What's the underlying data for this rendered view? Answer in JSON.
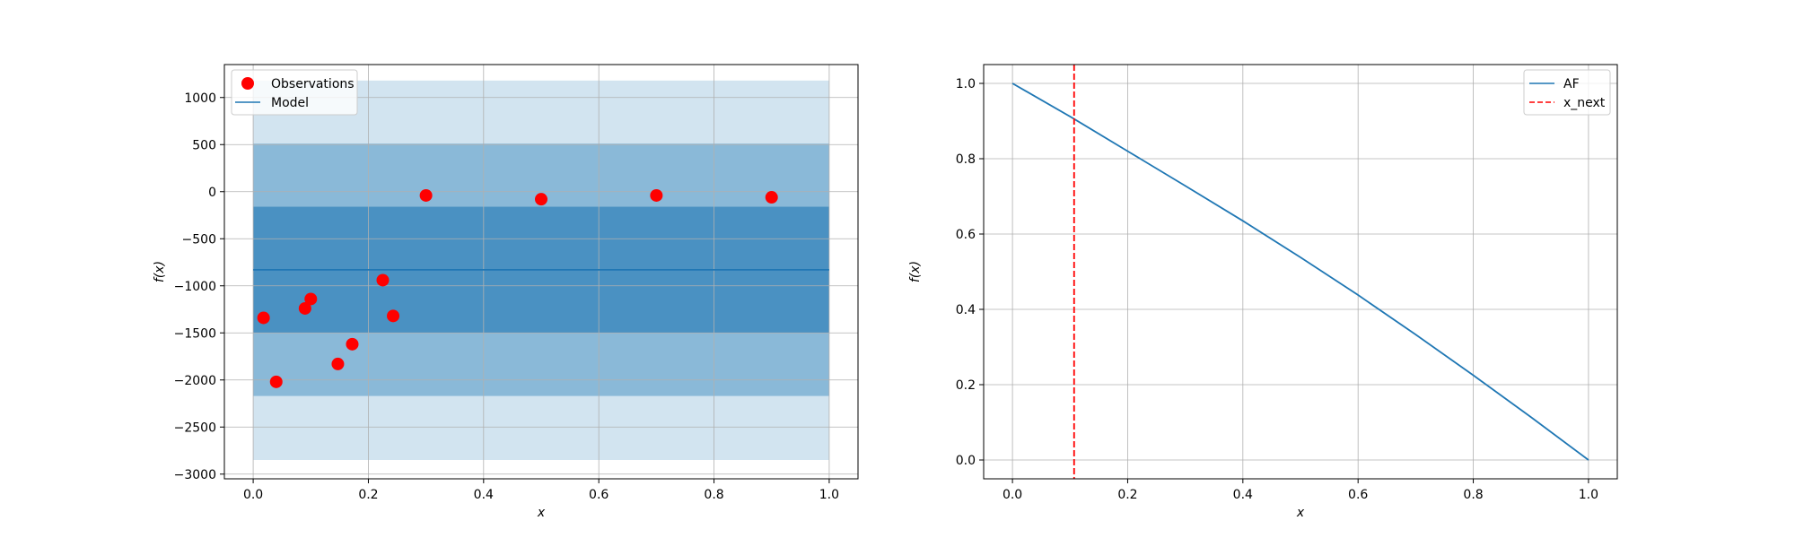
{
  "chart_data": [
    {
      "type": "scatter",
      "xlabel": "x",
      "ylabel": "f(x)",
      "xlim": [
        -0.05,
        1.05
      ],
      "ylim": [
        -3050,
        1350
      ],
      "xticks": [
        0.0,
        0.2,
        0.4,
        0.6,
        0.8,
        1.0
      ],
      "xtick_labels": [
        "0.0",
        "0.2",
        "0.4",
        "0.6",
        "0.8",
        "1.0"
      ],
      "yticks": [
        1000,
        500,
        0,
        -500,
        -1000,
        -1500,
        -2000,
        -2500,
        -3000
      ],
      "ytick_labels": [
        "1000",
        "500",
        "0",
        "−500",
        "−1000",
        "−1500",
        "−2000",
        "−2500",
        "−3000"
      ],
      "grid": true,
      "legend_position": "top-left",
      "legend": [
        "Observations",
        "Model"
      ],
      "observations": {
        "name": "Observations",
        "color": "#ff0000",
        "x": [
          0.018,
          0.04,
          0.09,
          0.1,
          0.147,
          0.172,
          0.225,
          0.243,
          0.3,
          0.5,
          0.7,
          0.9
        ],
        "y": [
          -1340,
          -2020,
          -1240,
          -1140,
          -1830,
          -1620,
          -940,
          -1320,
          -40,
          -80,
          -40,
          -60
        ]
      },
      "model": {
        "name": "Model",
        "color": "#1f77b4",
        "x": [
          0.0,
          1.0
        ],
        "y": [
          -830,
          -830
        ]
      },
      "bands": [
        {
          "lower": -2850,
          "upper": 1180,
          "color": "#1f77b4",
          "opacity": 0.2
        },
        {
          "lower": -2170,
          "upper": 510,
          "color": "#1f77b4",
          "opacity": 0.4
        },
        {
          "lower": -1500,
          "upper": -160,
          "color": "#1f77b4",
          "opacity": 0.6
        }
      ],
      "band_x": [
        0.0,
        1.0
      ]
    },
    {
      "type": "line",
      "xlabel": "x",
      "ylabel": "f(x)",
      "xlim": [
        -0.05,
        1.05
      ],
      "ylim": [
        -0.05,
        1.05
      ],
      "xticks": [
        0.0,
        0.2,
        0.4,
        0.6,
        0.8,
        1.0
      ],
      "xtick_labels": [
        "0.0",
        "0.2",
        "0.4",
        "0.6",
        "0.8",
        "1.0"
      ],
      "yticks": [
        0.0,
        0.2,
        0.4,
        0.6,
        0.8,
        1.0
      ],
      "ytick_labels": [
        "0.0",
        "0.2",
        "0.4",
        "0.6",
        "0.8",
        "1.0"
      ],
      "grid": true,
      "legend_position": "top-right",
      "legend": [
        "AF",
        "x_next"
      ],
      "series": [
        {
          "name": "AF",
          "color": "#1f77b4",
          "x": [
            0.0,
            0.1,
            0.2,
            0.3,
            0.4,
            0.5,
            0.6,
            0.7,
            0.8,
            0.9,
            1.0
          ],
          "y": [
            1.0,
            0.912,
            0.82,
            0.728,
            0.635,
            0.538,
            0.438,
            0.333,
            0.225,
            0.114,
            0.0
          ]
        }
      ],
      "vline": {
        "name": "x_next",
        "x": 0.107,
        "color": "#ff0000",
        "style": "dashed"
      }
    }
  ]
}
